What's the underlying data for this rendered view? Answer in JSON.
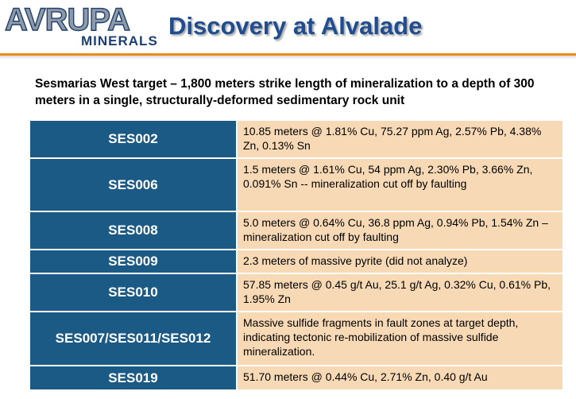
{
  "header": {
    "logo": {
      "top": "AVRUPA",
      "bottom": "MINERALS"
    },
    "title": "Discovery at Alvalade",
    "colors": {
      "accent_rule": "#e98c1b",
      "title": "#1f4d8f",
      "logo_blue": "#1d3f73"
    }
  },
  "intro": "Sesmarias West  target  –  1,800 meters strike length of mineralization to a depth of 300 meters in a single, structurally-deformed sedimentary rock unit",
  "table": {
    "colors": {
      "id_bg": "#1c5a86",
      "desc_bg": "#f7d9b5"
    },
    "rows": [
      {
        "id": "SES002",
        "desc": "10.85 meters @ 1.81% Cu, 75.27 ppm Ag, 2.57% Pb, 4.38% Zn, 0.13% Sn"
      },
      {
        "id": "SES006",
        "desc": "1.5 meters @ 1.61% Cu, 54 ppm Ag, 2.30% Pb, 3.66% Zn, 0.091% Sn -- mineralization cut off by faulting"
      },
      {
        "id": "SES008",
        "desc": "5.0 meters @ 0.64% Cu, 36.8 ppm Ag, 0.94% Pb, 1.54% Zn – mineralization cut off by faulting"
      },
      {
        "id": "SES009",
        "desc": "2.3 meters of massive pyrite (did not analyze)"
      },
      {
        "id": "SES010",
        "desc": "57.85 meters @ 0.45 g/t Au, 25.1 g/t Ag, 0.32% Cu, 0.61% Pb, 1.95% Zn"
      },
      {
        "id": "SES007/SES011/SES012",
        "desc": "Massive sulfide fragments in fault zones at target depth, indicating tectonic re-mobilization of massive sulfide mineralization."
      },
      {
        "id": "SES019",
        "desc": "51.70 meters @ 0.44% Cu, 2.71% Zn, 0.40 g/t Au"
      }
    ]
  }
}
